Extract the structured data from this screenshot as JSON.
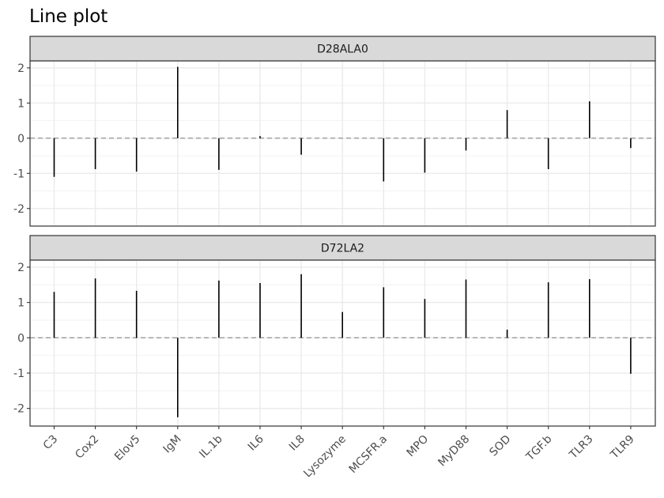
{
  "chart_data": {
    "type": "bar",
    "title": "Line plot",
    "xlabel": "",
    "ylabel": "",
    "categories": [
      "C3",
      "Cox2",
      "Elov5",
      "IgM",
      "IL.1b",
      "IL6",
      "IL8",
      "Lysozyme",
      "MCSFR.a",
      "MPO",
      "MyD88",
      "SOD",
      "TGF.b",
      "TLR3",
      "TLR9"
    ],
    "ylim": [
      -2.5,
      2.2
    ],
    "yticks": [
      -2,
      -1,
      0,
      1,
      2
    ],
    "ytick_labels": [
      "-2",
      "-1",
      "0",
      "1",
      "2"
    ],
    "reference_line": 0,
    "grid": true,
    "panels": [
      {
        "strip": "D28ALA0",
        "values": [
          -1.1,
          -0.88,
          -0.95,
          2.03,
          -0.9,
          0.06,
          -0.47,
          0.0,
          -1.23,
          -0.98,
          -0.35,
          0.8,
          -0.88,
          1.05,
          -0.28
        ]
      },
      {
        "strip": "D72LA2",
        "values": [
          1.3,
          1.68,
          1.33,
          -2.25,
          1.62,
          1.55,
          1.8,
          0.73,
          1.43,
          1.1,
          1.65,
          0.23,
          1.57,
          1.66,
          -1.02
        ]
      }
    ]
  }
}
